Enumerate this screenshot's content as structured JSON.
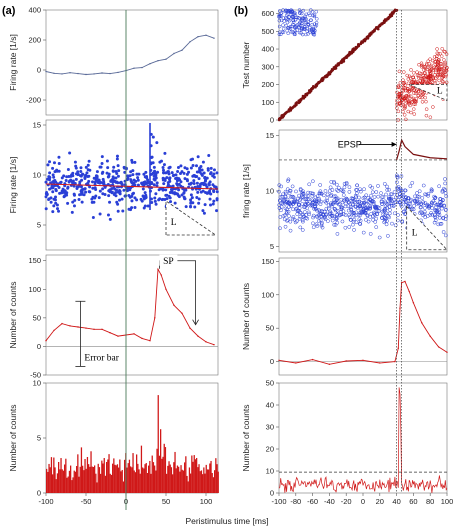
{
  "figure": {
    "xlabel": "Peristimulus time [ms]"
  },
  "panels": [
    {
      "label": "(a)"
    },
    {
      "label": "(b)"
    }
  ],
  "colors": {
    "blue": "#2a3fd6",
    "red": "#d01818",
    "dark_red": "#7a1010",
    "trace_blue": "#5a6a98",
    "cursor": "#4a7a5a"
  },
  "chart_data": [
    {
      "id": "a1",
      "type": "line",
      "ylabel": "Firing rate [1/s]",
      "xlim": [
        -100,
        115
      ],
      "ylim": [
        -300,
        400
      ],
      "yticks": [
        -200,
        0,
        200,
        400
      ],
      "xticks": [],
      "x": [
        -100,
        -90,
        -80,
        -70,
        -60,
        -50,
        -40,
        -30,
        -20,
        -10,
        0,
        10,
        20,
        30,
        40,
        50,
        60,
        70,
        80,
        90,
        100,
        110
      ],
      "y": [
        -10,
        -22,
        -26,
        -18,
        -24,
        -30,
        -26,
        -20,
        -24,
        -16,
        -4,
        12,
        16,
        42,
        62,
        72,
        110,
        132,
        188,
        222,
        232,
        212
      ]
    },
    {
      "id": "a2",
      "type": "scatter",
      "ylabel": "Firing rate [1/s]",
      "xlim": [
        -100,
        115
      ],
      "ylim": [
        2.5,
        15.5
      ],
      "yticks": [
        5,
        10,
        15
      ],
      "xticks": [],
      "mean": 9.0,
      "spread": 1.6,
      "annotations": {
        "L": "L"
      }
    },
    {
      "id": "a3",
      "type": "line",
      "ylabel": "Number of counts",
      "xlim": [
        -100,
        115
      ],
      "ylim": [
        -50,
        160
      ],
      "yticks": [
        -50,
        0,
        50,
        100,
        150
      ],
      "xticks": [],
      "x": [
        -100,
        -90,
        -80,
        -70,
        -60,
        -50,
        -40,
        -30,
        -20,
        -10,
        0,
        10,
        20,
        30,
        36,
        40,
        44,
        50,
        60,
        70,
        80,
        90,
        100,
        110
      ],
      "y": [
        10,
        28,
        40,
        36,
        34,
        32,
        30,
        30,
        24,
        18,
        20,
        22,
        14,
        10,
        50,
        135,
        125,
        100,
        72,
        58,
        32,
        18,
        8,
        3
      ],
      "error_bar": {
        "x": -57,
        "y": 22,
        "half": 57
      },
      "annotations": {
        "SP": "SP",
        "error_bar": "Error bar"
      }
    },
    {
      "id": "a4",
      "type": "bar",
      "ylabel": "Number of counts",
      "xlim": [
        -100,
        115
      ],
      "ylim": [
        0,
        10
      ],
      "yticks": [
        0,
        5,
        10
      ],
      "xticks": [
        -100,
        -50,
        0,
        50,
        100
      ],
      "baseline": 2.4,
      "peaks": [
        {
          "x": 40,
          "y": 8.9
        },
        {
          "x": 43,
          "y": 5.8
        }
      ]
    },
    {
      "id": "b1",
      "type": "scatter",
      "ylabel": "Test number",
      "xlim": [
        -100,
        100
      ],
      "ylim": [
        0,
        620
      ],
      "yticks": [
        0,
        100,
        200,
        300,
        400,
        500,
        600
      ],
      "xticks": [],
      "annotations": {
        "L": "L"
      }
    },
    {
      "id": "b2",
      "type": "scatter",
      "ylabel": "firing rate [1/s]",
      "xlim": [
        -100,
        100
      ],
      "ylim": [
        4.5,
        15.5
      ],
      "yticks": [
        5,
        10,
        15
      ],
      "xticks": [],
      "mean": 8.6,
      "spread": 1.4,
      "dashed_level": 12.8,
      "annotations": {
        "EPSP": "EPSP",
        "L": "L"
      }
    },
    {
      "id": "b3",
      "type": "line",
      "ylabel": "Number of counts",
      "xlim": [
        -100,
        100
      ],
      "ylim": [
        -20,
        155
      ],
      "yticks": [
        0,
        50,
        100,
        150
      ],
      "xticks": [],
      "x": [
        -100,
        -80,
        -60,
        -40,
        -20,
        0,
        20,
        38,
        42,
        44,
        46,
        50,
        55,
        60,
        70,
        80,
        90,
        100
      ],
      "y": [
        2,
        -2,
        3,
        -4,
        1,
        2,
        -2,
        0,
        20,
        80,
        118,
        120,
        105,
        88,
        58,
        38,
        22,
        14
      ]
    },
    {
      "id": "b4",
      "type": "bar",
      "ylabel": "Number of counts",
      "xlim": [
        -100,
        100
      ],
      "ylim": [
        0,
        50
      ],
      "yticks": [
        0,
        10,
        20,
        30,
        40,
        50
      ],
      "xticks": [
        -100,
        -80,
        -60,
        -40,
        -20,
        0,
        20,
        40,
        60,
        80,
        100
      ],
      "baseline": 4.0,
      "dashed_level": 9.5,
      "peaks": [
        {
          "x": 43,
          "y": 48
        },
        {
          "x": 44,
          "y": 45
        },
        {
          "x": 45,
          "y": 30
        }
      ]
    }
  ]
}
